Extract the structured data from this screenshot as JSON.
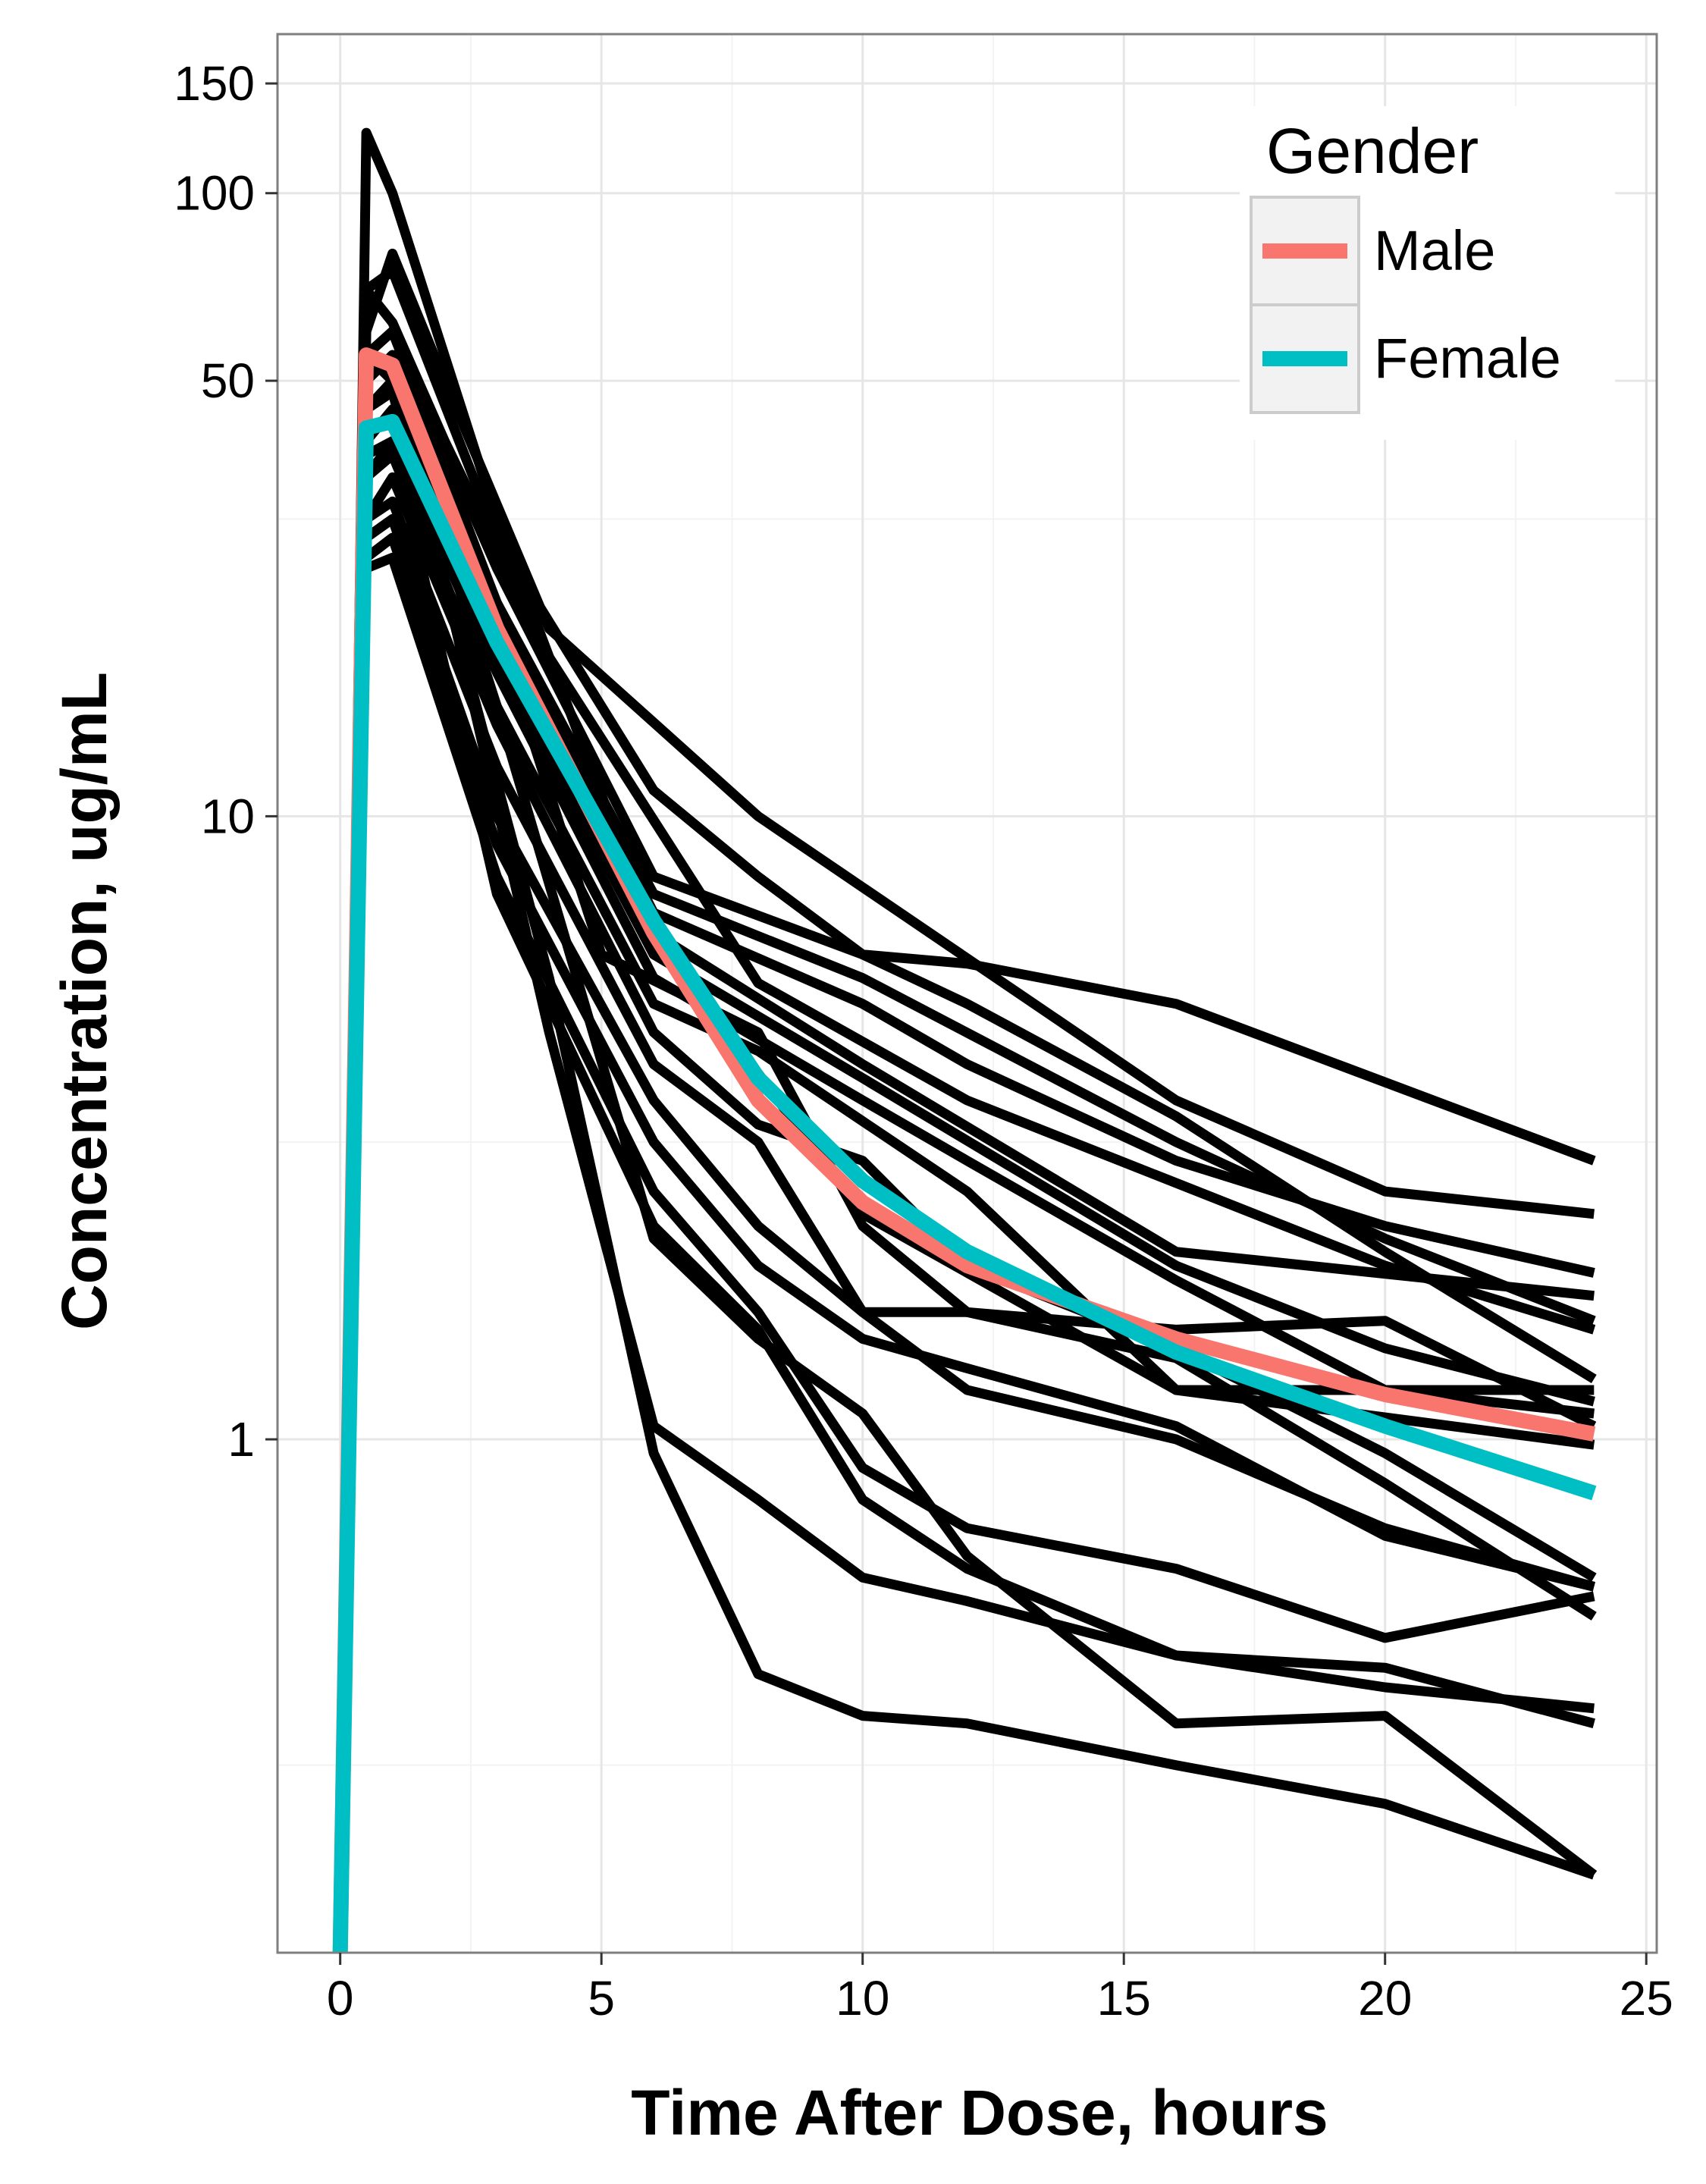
{
  "chart_data": {
    "type": "line",
    "xlabel": "Time After Dose, hours",
    "ylabel": "Concentration, ug/mL",
    "y_scale": "log10",
    "xlim": [
      -1.2,
      25.2
    ],
    "ylim": [
      0.15,
      180
    ],
    "x_ticks": [
      0,
      5,
      10,
      15,
      20,
      25
    ],
    "x_tick_labels": [
      "0",
      "5",
      "10",
      "15",
      "20",
      "25"
    ],
    "y_ticks": [
      1,
      10,
      50,
      100,
      150
    ],
    "y_tick_labels": [
      "1",
      "10",
      "50",
      "100",
      "150"
    ],
    "grid": true,
    "legend": {
      "title": "Gender",
      "position": "top-right",
      "entries": [
        {
          "label": "Male",
          "color": "#F8766D"
        },
        {
          "label": "Female",
          "color": "#00BFC4"
        }
      ]
    },
    "subject_color": "#000000",
    "subjects": [
      {
        "x": [
          0,
          0.5,
          1,
          3,
          6,
          10,
          16,
          24
        ],
        "y": [
          0.15,
          125,
          100,
          30,
          6.5,
          2.3,
          1.2,
          0.98
        ]
      },
      {
        "x": [
          0,
          0.5,
          1,
          2,
          4,
          8,
          12,
          20,
          24
        ],
        "y": [
          0.15,
          70,
          62,
          40,
          18,
          5.4,
          3.5,
          1.9,
          1.5
        ]
      },
      {
        "x": [
          0,
          0.5,
          1,
          2,
          4,
          8,
          16,
          20,
          24
        ],
        "y": [
          0.15,
          60,
          80,
          50,
          20,
          10,
          3.5,
          2.5,
          2.3
        ]
      },
      {
        "x": [
          0,
          0.5,
          1,
          3,
          6,
          8,
          10,
          12,
          16,
          24
        ],
        "y": [
          0.15,
          70,
          75,
          28,
          11,
          8,
          6,
          5.8,
          5,
          2.8
        ]
      },
      {
        "x": [
          0,
          0.5,
          1,
          3,
          6,
          10,
          12,
          16,
          20,
          24
        ],
        "y": [
          0.15,
          55,
          60,
          25,
          8,
          6,
          5,
          3.3,
          2,
          1.25
        ]
      },
      {
        "x": [
          0,
          0.5,
          1,
          3,
          6,
          10,
          16,
          20,
          24
        ],
        "y": [
          0.15,
          50,
          55,
          22,
          7.5,
          5.5,
          3,
          2.1,
          1.55
        ]
      },
      {
        "x": [
          0,
          0.5,
          1,
          3,
          6,
          10,
          12,
          16,
          20,
          24
        ],
        "y": [
          0.15,
          55,
          60,
          22,
          7,
          5,
          4,
          2.8,
          2.2,
          1.85
        ]
      },
      {
        "x": [
          0,
          0.5,
          1,
          3,
          6,
          10,
          16,
          24
        ],
        "y": [
          0.15,
          45,
          50,
          20,
          6.5,
          4,
          2,
          1.7
        ]
      },
      {
        "x": [
          0,
          0.5,
          1,
          3,
          6,
          10,
          16,
          20,
          24
        ],
        "y": [
          0.15,
          40,
          45,
          18,
          6,
          3.8,
          1.9,
          1.4,
          1.15
        ]
      },
      {
        "x": [
          0,
          0.5,
          1,
          3,
          6,
          10,
          12,
          16,
          20,
          24
        ],
        "y": [
          0.15,
          38,
          40,
          17,
          5.5,
          3.5,
          2.8,
          1.8,
          1.2,
          1.1
        ]
      },
      {
        "x": [
          0,
          0.5,
          1,
          3,
          6,
          8,
          12,
          16,
          20,
          24
        ],
        "y": [
          0.15,
          35,
          38,
          15,
          5,
          4.2,
          2.5,
          1.2,
          1.2,
          1.2
        ]
      },
      {
        "x": [
          0,
          0.5,
          1,
          3,
          6,
          8,
          10,
          12,
          16,
          20,
          24
        ],
        "y": [
          0.15,
          30,
          35,
          14,
          4.5,
          3.2,
          2.8,
          1.9,
          1.4,
          0.95,
          0.6
        ]
      },
      {
        "x": [
          0,
          0.5,
          1,
          3,
          5,
          8,
          10,
          12,
          16,
          20,
          24
        ],
        "y": [
          0.15,
          55,
          50,
          20,
          6,
          4.5,
          2.2,
          1.6,
          1.5,
          1.55,
          1.05
        ]
      },
      {
        "x": [
          0,
          0.5,
          1,
          3,
          6,
          8,
          10,
          12,
          16,
          20,
          24
        ],
        "y": [
          0.15,
          30,
          32,
          12,
          4,
          3,
          1.6,
          1.2,
          1,
          0.72,
          0.58
        ]
      },
      {
        "x": [
          0,
          0.5,
          1,
          3,
          6,
          8,
          10,
          12,
          16,
          20,
          24
        ],
        "y": [
          0.15,
          28,
          30,
          10,
          3.5,
          2.2,
          1.6,
          1.6,
          1.35,
          0.85,
          0.52
        ]
      },
      {
        "x": [
          0,
          0.5,
          1,
          3,
          6,
          8,
          10,
          12,
          16,
          20,
          24
        ],
        "y": [
          0.15,
          26,
          28,
          9,
          3,
          1.9,
          1.45,
          1.3,
          1.05,
          0.7,
          0.58
        ]
      },
      {
        "x": [
          0,
          0.5,
          1,
          3,
          6,
          8,
          10,
          12,
          16,
          20,
          24
        ],
        "y": [
          0.15,
          25,
          26,
          8,
          2.5,
          1.6,
          0.9,
          0.72,
          0.62,
          0.48,
          0.56
        ]
      },
      {
        "x": [
          0,
          0.5,
          1,
          3,
          6,
          8,
          10,
          12,
          16,
          20,
          24
        ],
        "y": [
          0.15,
          35,
          40,
          7.5,
          2.2,
          1.5,
          0.8,
          0.62,
          0.45,
          0.43,
          0.35
        ]
      },
      {
        "x": [
          0,
          0.5,
          1,
          3,
          6,
          8,
          10,
          12,
          16,
          20,
          24
        ],
        "y": [
          0.15,
          45,
          50,
          15,
          2.1,
          1.45,
          1.1,
          0.65,
          0.35,
          0.36,
          0.2
        ]
      },
      {
        "x": [
          0,
          0.5,
          1,
          4,
          6,
          8,
          10,
          12,
          16,
          20,
          24
        ],
        "y": [
          0.15,
          50,
          55,
          4.5,
          1.05,
          0.8,
          0.6,
          0.55,
          0.45,
          0.4,
          0.37
        ]
      },
      {
        "x": [
          0,
          0.5,
          1,
          4,
          6,
          8,
          10,
          12,
          16,
          20,
          24
        ],
        "y": [
          0.15,
          45,
          48,
          5.5,
          0.95,
          0.42,
          0.36,
          0.35,
          0.3,
          0.26,
          0.2
        ]
      }
    ],
    "series": [
      {
        "name": "Male",
        "color": "#F8766D",
        "x": [
          0,
          0.5,
          1,
          3,
          6,
          8,
          10,
          12,
          16,
          20,
          24
        ],
        "y": [
          0.15,
          55,
          53,
          20,
          6.5,
          3.5,
          2.4,
          1.9,
          1.45,
          1.18,
          1.02
        ]
      },
      {
        "name": "Female",
        "color": "#00BFC4",
        "x": [
          0,
          0.5,
          1,
          3,
          6,
          8,
          10,
          12,
          16,
          20,
          24
        ],
        "y": [
          0.15,
          42,
          43,
          19,
          6.8,
          3.8,
          2.6,
          2.0,
          1.38,
          1.05,
          0.82
        ]
      }
    ]
  }
}
